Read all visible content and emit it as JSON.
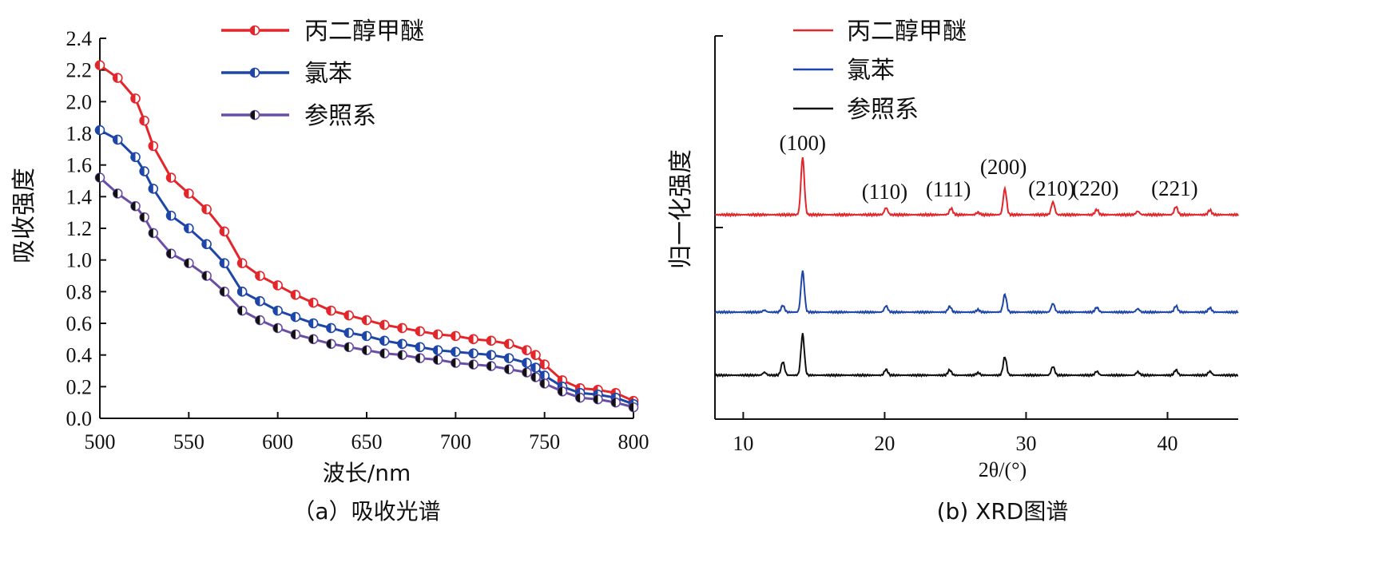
{
  "chart_data": [
    {
      "type": "line",
      "caption": "（a）吸收光谱",
      "xlabel": "波长/nm",
      "ylabel": "吸收强度",
      "xlim": [
        500,
        800
      ],
      "ylim": [
        0,
        2.4
      ],
      "xticks": [
        "500",
        "550",
        "600",
        "650",
        "700",
        "750",
        "800"
      ],
      "yticks": [
        "0.0",
        "0.2",
        "0.4",
        "0.6",
        "0.8",
        "1.0",
        "1.2",
        "1.4",
        "1.6",
        "1.8",
        "2.0",
        "2.2",
        "2.4"
      ],
      "legend": "top",
      "markers": "circle",
      "series": [
        {
          "name": "丙二醇甲醚",
          "color": "#e3262b",
          "x": [
            500,
            510,
            520,
            525,
            530,
            540,
            550,
            560,
            570,
            580,
            590,
            600,
            610,
            620,
            630,
            640,
            650,
            660,
            670,
            680,
            690,
            700,
            710,
            720,
            730,
            740,
            745,
            750,
            760,
            770,
            780,
            790,
            800
          ],
          "y": [
            2.23,
            2.15,
            2.02,
            1.88,
            1.72,
            1.52,
            1.42,
            1.32,
            1.18,
            0.98,
            0.9,
            0.84,
            0.78,
            0.73,
            0.68,
            0.65,
            0.62,
            0.59,
            0.57,
            0.55,
            0.53,
            0.52,
            0.5,
            0.49,
            0.47,
            0.43,
            0.4,
            0.34,
            0.24,
            0.19,
            0.18,
            0.16,
            0.11
          ]
        },
        {
          "name": "氯苯",
          "color": "#1e46a8",
          "x": [
            500,
            510,
            520,
            525,
            530,
            540,
            550,
            560,
            570,
            580,
            590,
            600,
            610,
            620,
            630,
            640,
            650,
            660,
            670,
            680,
            690,
            700,
            710,
            720,
            730,
            740,
            745,
            750,
            760,
            770,
            780,
            790,
            800
          ],
          "y": [
            1.82,
            1.76,
            1.65,
            1.56,
            1.45,
            1.28,
            1.2,
            1.1,
            0.98,
            0.8,
            0.74,
            0.68,
            0.64,
            0.6,
            0.57,
            0.54,
            0.52,
            0.49,
            0.47,
            0.45,
            0.43,
            0.42,
            0.41,
            0.4,
            0.38,
            0.35,
            0.32,
            0.27,
            0.2,
            0.16,
            0.15,
            0.13,
            0.09
          ]
        },
        {
          "name": "参照系",
          "color": "#6a4ea6",
          "x": [
            500,
            510,
            520,
            525,
            530,
            540,
            550,
            560,
            570,
            580,
            590,
            600,
            610,
            620,
            630,
            640,
            650,
            660,
            670,
            680,
            690,
            700,
            710,
            720,
            730,
            740,
            745,
            750,
            760,
            770,
            780,
            790,
            800
          ],
          "y": [
            1.52,
            1.42,
            1.34,
            1.27,
            1.17,
            1.04,
            0.98,
            0.9,
            0.8,
            0.68,
            0.62,
            0.57,
            0.53,
            0.5,
            0.47,
            0.45,
            0.43,
            0.41,
            0.4,
            0.38,
            0.37,
            0.35,
            0.34,
            0.33,
            0.31,
            0.29,
            0.26,
            0.22,
            0.17,
            0.13,
            0.12,
            0.1,
            0.07
          ]
        }
      ]
    },
    {
      "type": "line",
      "caption": "(b) XRD图谱",
      "xlabel": "2θ/(°)",
      "ylabel": "归一化强度",
      "xlim": [
        8,
        45
      ],
      "xticks": [
        "10",
        "20",
        "30",
        "40"
      ],
      "legend": "top",
      "peak_labels": [
        {
          "text": "(100)",
          "x": 14.2
        },
        {
          "text": "(110)",
          "x": 20.0
        },
        {
          "text": "(111)",
          "x": 24.5
        },
        {
          "text": "(200)",
          "x": 28.4
        },
        {
          "text": "(210)",
          "x": 31.8
        },
        {
          "text": "(220)",
          "x": 34.9
        },
        {
          "text": "(221)",
          "x": 40.5
        }
      ],
      "series": [
        {
          "name": "丙二醇甲醚",
          "color": "#e3262b",
          "peaks": [
            [
              14.2,
              1.0
            ],
            [
              20.1,
              0.12
            ],
            [
              24.7,
              0.11
            ],
            [
              26.6,
              0.04
            ],
            [
              28.5,
              0.45
            ],
            [
              31.9,
              0.22
            ],
            [
              35.0,
              0.09
            ],
            [
              37.9,
              0.06
            ],
            [
              40.6,
              0.14
            ],
            [
              43.0,
              0.08
            ]
          ]
        },
        {
          "name": "氯苯",
          "color": "#1e46a8",
          "peaks": [
            [
              11.5,
              0.04
            ],
            [
              12.8,
              0.14
            ],
            [
              14.2,
              0.86
            ],
            [
              20.1,
              0.13
            ],
            [
              24.6,
              0.12
            ],
            [
              26.6,
              0.05
            ],
            [
              28.5,
              0.37
            ],
            [
              31.9,
              0.18
            ],
            [
              35.0,
              0.1
            ],
            [
              37.9,
              0.07
            ],
            [
              40.6,
              0.13
            ],
            [
              43.0,
              0.09
            ]
          ]
        },
        {
          "name": "参照系",
          "color": "#111111",
          "peaks": [
            [
              11.5,
              0.06
            ],
            [
              12.8,
              0.28
            ],
            [
              14.2,
              0.86
            ],
            [
              20.1,
              0.12
            ],
            [
              24.6,
              0.11
            ],
            [
              26.6,
              0.05
            ],
            [
              28.5,
              0.38
            ],
            [
              31.9,
              0.18
            ],
            [
              35.0,
              0.08
            ],
            [
              37.9,
              0.07
            ],
            [
              40.6,
              0.11
            ],
            [
              43.0,
              0.08
            ]
          ]
        }
      ]
    }
  ]
}
